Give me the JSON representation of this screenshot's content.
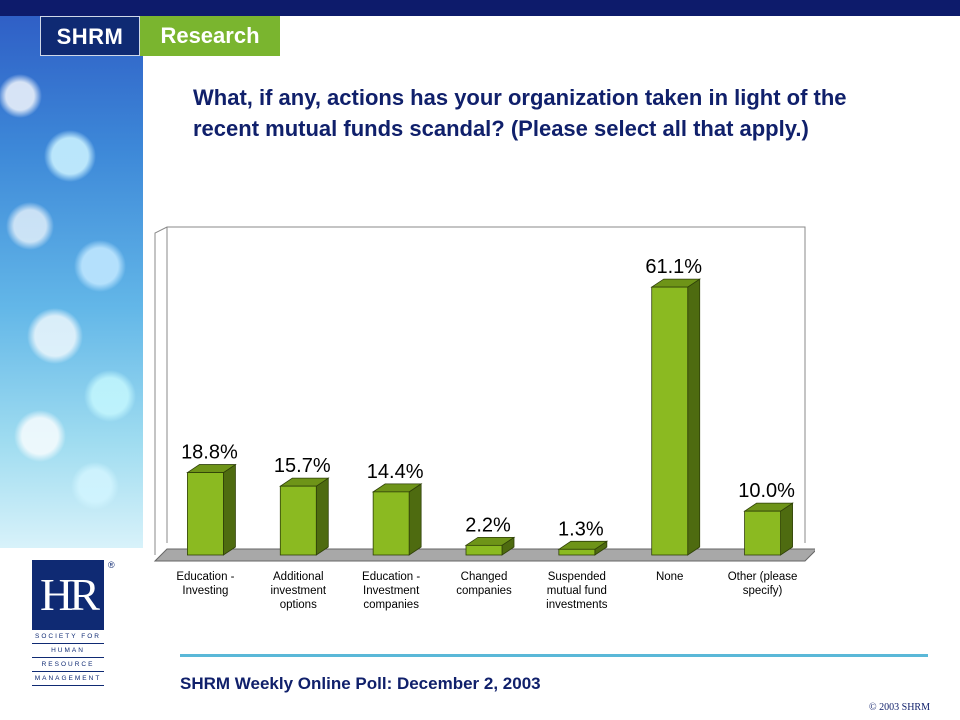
{
  "brand": {
    "left": "SHRM",
    "right": "Research"
  },
  "question": "What, if any, actions has your organization taken in light of the recent mutual funds scandal?  (Please select all that apply.)",
  "footer": {
    "title": "SHRM Weekly Online Poll: December 2, 2003",
    "copyright": "© 2003 SHRM"
  },
  "logo": {
    "mark": "HR",
    "registered": "®",
    "lines": [
      "SOCIETY FOR",
      "HUMAN",
      "RESOURCE",
      "MANAGEMENT"
    ]
  },
  "colors": {
    "bar": "#8bba21",
    "bar_top": "#6e9418",
    "bar_side": "#4e6b10",
    "title": "#10206b",
    "brand_blue": "#0f2a73",
    "brand_green": "#7ab52f"
  },
  "chart_data": {
    "type": "bar",
    "categories": [
      "Education - Investing",
      "Additional investment options",
      "Education - Investment companies",
      "Changed companies",
      "Suspended mutual fund investments",
      "None",
      "Other (please specify)"
    ],
    "values": [
      18.8,
      15.7,
      14.4,
      2.2,
      1.3,
      61.1,
      10.0
    ],
    "labels": [
      "18.8%",
      "15.7%",
      "14.4%",
      "2.2%",
      "1.3%",
      "61.1%",
      "10.0%"
    ],
    "ylim": [
      0,
      65
    ],
    "title": "",
    "xlabel": "",
    "ylabel": "",
    "grid": false
  }
}
